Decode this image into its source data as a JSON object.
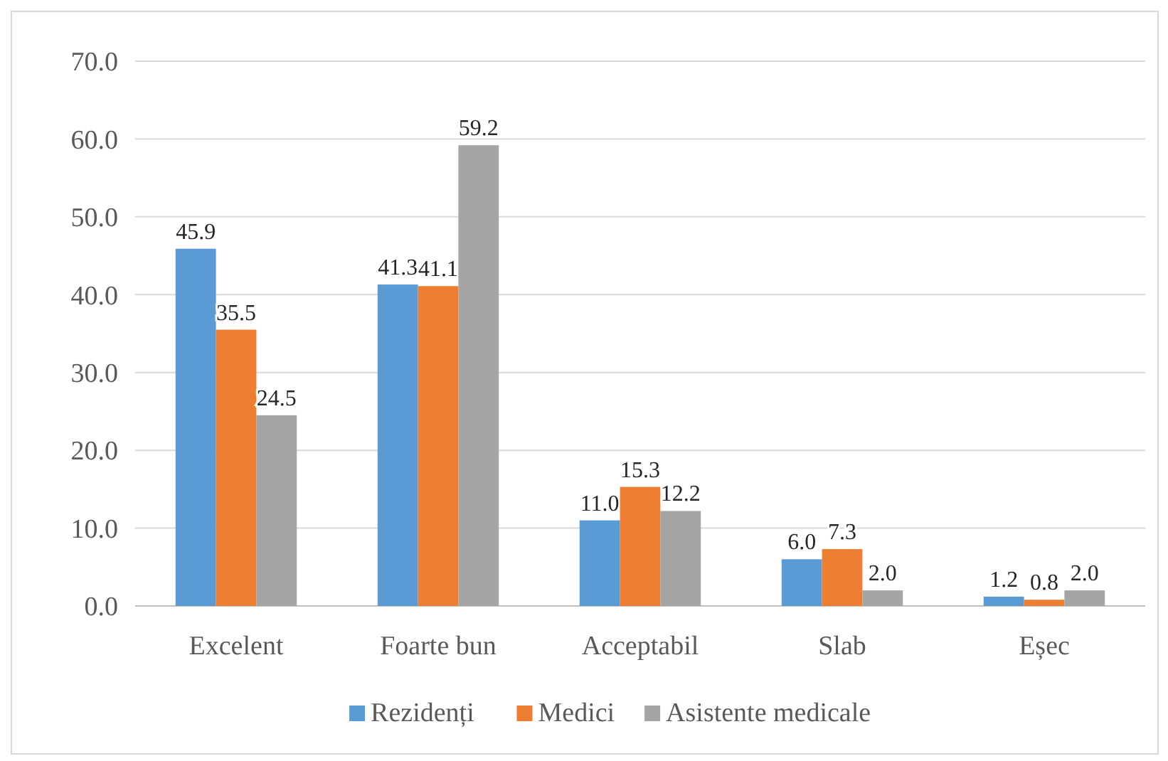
{
  "chart_data": {
    "type": "bar",
    "categories": [
      "Excelent",
      "Foarte bun",
      "Acceptabil",
      "Slab",
      "Eșec"
    ],
    "series": [
      {
        "name": "Rezidenți",
        "color": "#5b9bd5",
        "values": [
          45.9,
          41.3,
          11.0,
          6.0,
          1.2
        ],
        "value_labels": [
          "45.9",
          "41.3",
          "11.0",
          "6.0",
          "1.2"
        ]
      },
      {
        "name": "Medici",
        "color": "#ed7d31",
        "values": [
          35.5,
          41.1,
          15.3,
          7.3,
          0.8
        ],
        "value_labels": [
          "35.5",
          "41.1",
          "15.3",
          "7.3",
          "0.8"
        ]
      },
      {
        "name": "Asistente medicale",
        "color": "#a5a5a5",
        "values": [
          24.5,
          59.2,
          12.2,
          2.0,
          2.0
        ],
        "value_labels": [
          "24.5",
          "59.2",
          "12.2",
          "2.0",
          "2.0"
        ]
      }
    ],
    "ylim": [
      0,
      70
    ],
    "yticks": [
      {
        "value": 0,
        "label": "0.0"
      },
      {
        "value": 10,
        "label": "10.0"
      },
      {
        "value": 20,
        "label": "20.0"
      },
      {
        "value": 30,
        "label": "30.0"
      },
      {
        "value": 40,
        "label": "40.0"
      },
      {
        "value": 50,
        "label": "50.0"
      },
      {
        "value": 60,
        "label": "60.0"
      },
      {
        "value": 70,
        "label": "70.0"
      }
    ],
    "grid": "y",
    "legend": "bottom"
  }
}
